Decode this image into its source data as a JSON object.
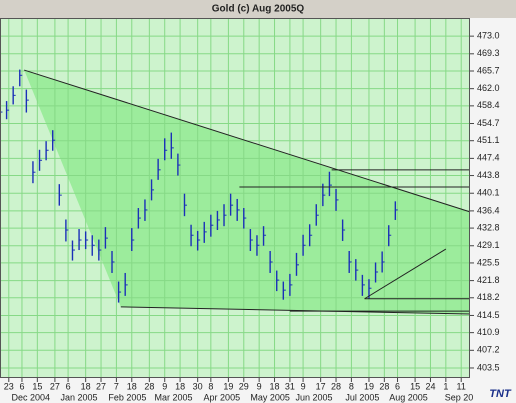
{
  "chart_data": {
    "type": "ohlc",
    "title": "Gold (c) Aug 2005Q",
    "logo": "TNT",
    "color": "#1a2fb8",
    "grid": true,
    "grid_color": "#86d986",
    "background": "#cdf3cd",
    "channel_fill": "#9cec9c",
    "line_color": "#222222",
    "xlim": [
      0,
      214
    ],
    "ylim": [
      401.4,
      476.8
    ],
    "xticks": [
      {
        "value": 4,
        "label": "23"
      },
      {
        "value": 10,
        "label": "6"
      },
      {
        "value": 17,
        "label": "15"
      },
      {
        "value": 25,
        "label": "27"
      },
      {
        "value": 31,
        "label": "6"
      },
      {
        "value": 39,
        "label": "18"
      },
      {
        "value": 46,
        "label": "27"
      },
      {
        "value": 53,
        "label": "7"
      },
      {
        "value": 60,
        "label": "18"
      },
      {
        "value": 68,
        "label": "28"
      },
      {
        "value": 75,
        "label": "9"
      },
      {
        "value": 82,
        "label": "18"
      },
      {
        "value": 90,
        "label": "30"
      },
      {
        "value": 96,
        "label": "8"
      },
      {
        "value": 104,
        "label": "19"
      },
      {
        "value": 111,
        "label": "29"
      },
      {
        "value": 118,
        "label": "9"
      },
      {
        "value": 125,
        "label": "18"
      },
      {
        "value": 132,
        "label": "31"
      },
      {
        "value": 138,
        "label": "9"
      },
      {
        "value": 146,
        "label": "17"
      },
      {
        "value": 153,
        "label": "28"
      },
      {
        "value": 160,
        "label": "8"
      },
      {
        "value": 168,
        "label": "19"
      },
      {
        "value": 175,
        "label": "28"
      },
      {
        "value": 181,
        "label": "6"
      },
      {
        "value": 189,
        "label": "15"
      },
      {
        "value": 196,
        "label": "24"
      },
      {
        "value": 203,
        "label": "1"
      },
      {
        "value": 210,
        "label": "11"
      }
    ],
    "months": [
      {
        "value": 14,
        "label": "Dec 2004"
      },
      {
        "value": 36,
        "label": "Jan 2005"
      },
      {
        "value": 58,
        "label": "Feb 2005"
      },
      {
        "value": 79,
        "label": "Mar 2005"
      },
      {
        "value": 101,
        "label": "Apr 2005"
      },
      {
        "value": 123,
        "label": "May 2005"
      },
      {
        "value": 143,
        "label": "Jun 2005"
      },
      {
        "value": 165,
        "label": "Jul 2005"
      },
      {
        "value": 186,
        "label": "Aug 2005"
      },
      {
        "value": 209,
        "label": "Sep 20"
      }
    ],
    "yticks": [
      {
        "value": 473,
        "label": "473.0"
      },
      469.3,
      465.7,
      {
        "value": 462,
        "label": "462.0"
      },
      458.4,
      454.7,
      451.1,
      447.4,
      443.8,
      440.1,
      436.4,
      432.8,
      429.1,
      425.5,
      421.8,
      418.2,
      414.5,
      410.9,
      407.2,
      403.5
    ],
    "x": [
      0,
      3,
      6,
      9,
      12,
      15,
      18,
      21,
      24,
      27,
      30,
      33,
      36,
      39,
      42,
      45,
      48,
      51,
      54,
      57,
      60,
      63,
      66,
      69,
      72,
      75,
      78,
      81,
      84,
      87,
      90,
      93,
      96,
      99,
      102,
      105,
      108,
      111,
      114,
      117,
      120,
      123,
      126,
      129,
      132,
      135,
      138,
      141,
      144,
      147,
      150,
      153,
      156,
      159,
      162,
      165,
      168,
      171,
      174,
      177,
      180
    ],
    "high": [
      459.0,
      459.4,
      462.5,
      466.0,
      461.8,
      446.8,
      449.2,
      451.0,
      453.3,
      442.0,
      434.6,
      430.2,
      432.6,
      432.1,
      431.3,
      430.4,
      433.0,
      428.0,
      421.6,
      423.4,
      432.8,
      437.0,
      438.8,
      443.0,
      447.3,
      451.6,
      452.8,
      448.4,
      440.0,
      433.5,
      432.2,
      434.1,
      435.6,
      436.4,
      437.8,
      440.0,
      438.9,
      437.0,
      432.6,
      431.3,
      433.2,
      428.0,
      423.9,
      421.6,
      423.2,
      427.6,
      431.4,
      433.6,
      437.8,
      442.1,
      444.6,
      441.0,
      434.6,
      428.0,
      426.3,
      423.0,
      422.1,
      425.6,
      427.9,
      433.4,
      438.4
    ],
    "low": [
      455.0,
      455.6,
      458.7,
      462.5,
      457.0,
      442.2,
      444.8,
      447.0,
      449.0,
      437.5,
      430.0,
      426.0,
      428.2,
      428.4,
      427.0,
      426.0,
      428.5,
      423.4,
      417.2,
      418.6,
      428.0,
      432.7,
      434.3,
      438.6,
      442.9,
      447.0,
      447.3,
      443.8,
      435.3,
      429.0,
      428.1,
      429.7,
      431.0,
      432.4,
      433.2,
      435.4,
      434.3,
      432.7,
      428.0,
      427.0,
      429.1,
      423.4,
      419.6,
      417.8,
      418.6,
      422.8,
      427.0,
      429.0,
      433.3,
      437.4,
      439.5,
      436.4,
      430.1,
      423.4,
      421.8,
      418.6,
      418.0,
      421.4,
      423.5,
      429.0,
      434.5
    ],
    "close": [
      457.1,
      457.5,
      460.6,
      464.8,
      459.6,
      444.5,
      447.0,
      449.1,
      451.2,
      439.7,
      432.4,
      428.2,
      430.3,
      430.3,
      429.2,
      428.2,
      430.7,
      425.7,
      419.4,
      420.9,
      430.3,
      434.9,
      436.6,
      440.8,
      445.0,
      449.1,
      449.6,
      446.0,
      437.6,
      431.3,
      430.3,
      432.0,
      433.4,
      434.5,
      435.5,
      437.6,
      436.6,
      434.9,
      430.3,
      429.2,
      431.3,
      425.7,
      421.9,
      419.8,
      420.9,
      425.1,
      429.2,
      431.3,
      435.5,
      439.7,
      441.8,
      438.7,
      432.4,
      425.7,
      424.0,
      420.9,
      420.2,
      423.6,
      425.7,
      431.3,
      436.6
    ],
    "trendlines": [
      {
        "x": [
          11,
          214
        ],
        "y": [
          465.9,
          436.2
        ]
      },
      {
        "x": [
          55,
          214
        ],
        "y": [
          416.3,
          414.8
        ]
      },
      {
        "x": [
          109,
          214
        ],
        "y": [
          441.4,
          441.4
        ]
      },
      {
        "x": [
          151,
          214
        ],
        "y": [
          445.0,
          445.0
        ]
      },
      {
        "x": [
          166,
          214
        ],
        "y": [
          418.0,
          418.0
        ]
      },
      {
        "x": [
          132,
          214
        ],
        "y": [
          415.4,
          415.4
        ]
      },
      {
        "x": [
          166,
          203
        ],
        "y": [
          418.0,
          428.4
        ]
      }
    ]
  }
}
